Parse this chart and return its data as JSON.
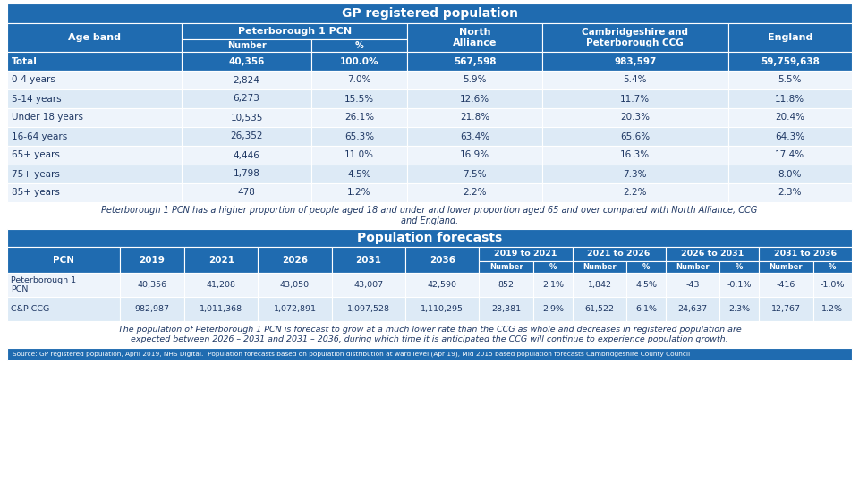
{
  "title1": "GP registered population",
  "title2": "Population forecasts",
  "header_bg": "#1F6BB0",
  "header_text": "#FFFFFF",
  "row_bg_dark": "#DDEAF6",
  "row_bg_light": "#EEF4FB",
  "total_bg": "#1F6BB0",
  "total_text": "#FFFFFF",
  "note_text": "#1F3864",
  "source_bg": "#1F6BB0",
  "source_text": "#FFFFFF",
  "table1_rows": [
    [
      "Total",
      "40,356",
      "100.0%",
      "567,598",
      "983,597",
      "59,759,638"
    ],
    [
      "0-4 years",
      "2,824",
      "7.0%",
      "5.9%",
      "5.4%",
      "5.5%"
    ],
    [
      "5-14 years",
      "6,273",
      "15.5%",
      "12.6%",
      "11.7%",
      "11.8%"
    ],
    [
      "Under 18 years",
      "10,535",
      "26.1%",
      "21.8%",
      "20.3%",
      "20.4%"
    ],
    [
      "16-64 years",
      "26,352",
      "65.3%",
      "63.4%",
      "65.6%",
      "64.3%"
    ],
    [
      "65+ years",
      "4,446",
      "11.0%",
      "16.9%",
      "16.3%",
      "17.4%"
    ],
    [
      "75+ years",
      "1,798",
      "4.5%",
      "7.5%",
      "7.3%",
      "8.0%"
    ],
    [
      "85+ years",
      "478",
      "1.2%",
      "2.2%",
      "2.2%",
      "2.3%"
    ]
  ],
  "note1": "Peterborough 1 PCN has a higher proportion of people aged 18 and under and lower proportion aged 65 and over compared with North Alliance, CCG\nand England.",
  "table2_rows": [
    [
      "Peterborough 1\nPCN",
      "40,356",
      "41,208",
      "43,050",
      "43,007",
      "42,590",
      "852",
      "2.1%",
      "1,842",
      "4.5%",
      "-43",
      "-0.1%",
      "-416",
      "-1.0%"
    ],
    [
      "C&P CCG",
      "982,987",
      "1,011,368",
      "1,072,891",
      "1,097,528",
      "1,110,295",
      "28,381",
      "2.9%",
      "61,522",
      "6.1%",
      "24,637",
      "2.3%",
      "12,767",
      "1.2%"
    ]
  ],
  "note2": "The population of Peterborough 1 PCN is forecast to grow at a much lower rate than the CCG as whole and decreases in registered population are\nexpected between 2026 – 2031 and 2031 – 2036, during which time it is anticipated the CCG will continue to experience population growth.",
  "source": "Source: GP registered population, April 2019, NHS Digital.  Population forecasts based on population distribution at ward level (Apr 19), Mid 2015 based population forecasts Cambridgeshire County Council"
}
